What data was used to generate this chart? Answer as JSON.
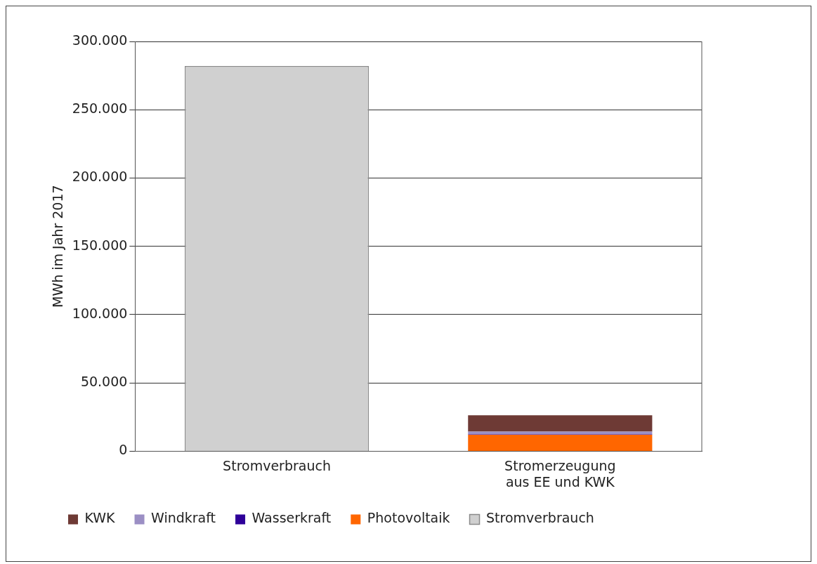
{
  "chart_data": {
    "type": "bar",
    "stacked": true,
    "ylabel": "MWh im Jahr 2017",
    "categories": [
      "Stromverbrauch",
      "Stromerzeugung aus EE und KWK"
    ],
    "series": [
      {
        "name": "Stromverbrauch",
        "color": "#d0d0d0",
        "values": [
          282000,
          null
        ]
      },
      {
        "name": "Photovoltaik",
        "color": "#ff6600",
        "values": [
          null,
          12000
        ]
      },
      {
        "name": "Wasserkraft",
        "color": "#2e0099",
        "values": [
          null,
          300
        ]
      },
      {
        "name": "Windkraft",
        "color": "#9b8fc4",
        "values": [
          null,
          2000
        ]
      },
      {
        "name": "KWK",
        "color": "#6e3a35",
        "values": [
          null,
          12000
        ]
      }
    ],
    "ylim": [
      0,
      300000
    ],
    "yticks": [
      {
        "value": 0,
        "label": "0"
      },
      {
        "value": 50000,
        "label": "50.000"
      },
      {
        "value": 100000,
        "label": "100.000"
      },
      {
        "value": 150000,
        "label": "150.000"
      },
      {
        "value": 200000,
        "label": "200.000"
      },
      {
        "value": 250000,
        "label": "250.000"
      },
      {
        "value": 300000,
        "label": "300.000"
      }
    ],
    "grid": "y",
    "legend": "bottom"
  }
}
